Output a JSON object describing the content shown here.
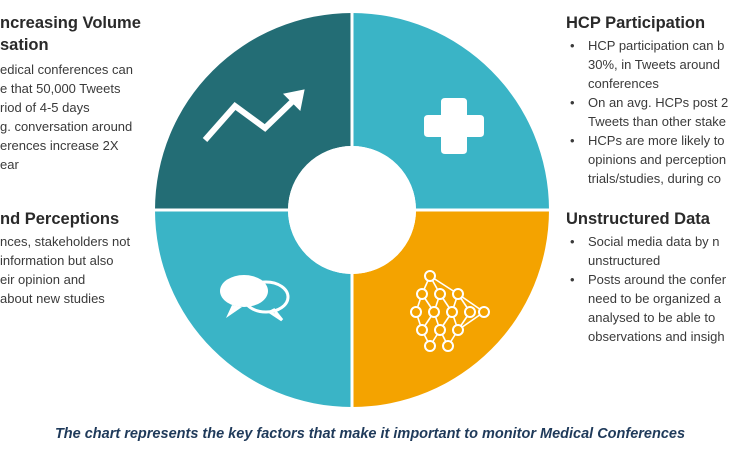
{
  "colors": {
    "top_left": "#236d75",
    "top_right": "#3ab4c6",
    "bottom_left": "#3ab4c6",
    "bottom_right": "#f4a300",
    "center": "#ffffff",
    "icon": "#ffffff",
    "caption": "#1f3a5a"
  },
  "segments": {
    "top_left": {
      "icon": "trend-up-arrow-icon"
    },
    "top_right": {
      "icon": "medical-cross-icon"
    },
    "bottom_left": {
      "icon": "speech-bubbles-icon"
    },
    "bottom_right": {
      "icon": "neural-network-icon"
    }
  },
  "panels": {
    "increasing_volume": {
      "title_lines": [
        "ncreasing Volume",
        "sation"
      ],
      "body_lines": [
        "edical conferences can",
        "e that 50,000 Tweets",
        "riod of 4-5 days",
        "g. conversation around",
        "erences increase 2X",
        "ear"
      ]
    },
    "opinions": {
      "title_lines": [
        "nd Perceptions"
      ],
      "body_lines": [
        "nces, stakeholders not",
        "information but also",
        "eir opinion and",
        "about new studies"
      ]
    },
    "hcp_participation": {
      "title": "HCP Participation",
      "bullets": [
        [
          "HCP participation can b",
          "30%, in Tweets around",
          "conferences"
        ],
        [
          "On an avg. HCPs post 2",
          "Tweets than other stake"
        ],
        [
          "HCPs are more likely to",
          "opinions and perception",
          "trials/studies, during co"
        ]
      ]
    },
    "unstructured_data": {
      "title": "Unstructured Data",
      "bullets": [
        [
          "Social media data by n",
          "unstructured"
        ],
        [
          "Posts around the confer",
          "need to be organized a",
          "analysed to be able to",
          "observations and insigh"
        ]
      ]
    }
  },
  "caption": "The chart represents the key factors that make it important to monitor Medical Conferences"
}
